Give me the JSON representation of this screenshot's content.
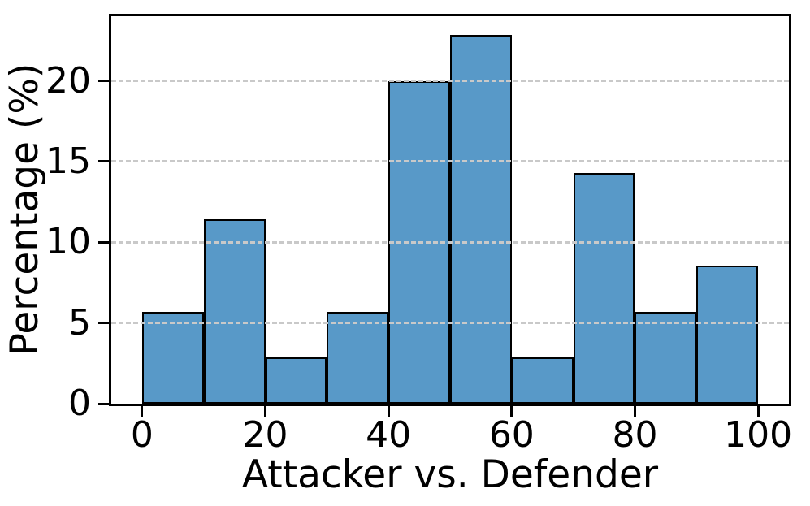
{
  "chart_data": {
    "type": "bar",
    "subtype": "histogram",
    "title": "",
    "xlabel": "Attacker vs. Defender",
    "ylabel": "Percentage (%)",
    "bin_edges": [
      0,
      10,
      20,
      30,
      40,
      50,
      60,
      70,
      80,
      90,
      100
    ],
    "values": [
      5.71,
      11.43,
      2.86,
      5.71,
      20.0,
      22.86,
      2.86,
      14.29,
      5.71,
      8.57
    ],
    "x_tick_values": [
      0,
      20,
      40,
      60,
      80,
      100
    ],
    "x_tick_labels": [
      "0",
      "20",
      "40",
      "60",
      "80",
      "100"
    ],
    "y_tick_values": [
      0,
      5,
      10,
      15,
      20
    ],
    "y_tick_labels": [
      "0",
      "5",
      "10",
      "15",
      "20"
    ],
    "xlim": [
      -5,
      105
    ],
    "ylim": [
      0,
      24
    ],
    "grid": {
      "axis": "y",
      "style": "dashed",
      "on_top": true
    },
    "legend_position": "none",
    "colors": {
      "bar_fill": "#5899C8",
      "bar_edge": "#000000",
      "grid_color": "#c9c9c9",
      "spine": "#000000",
      "background": "#ffffff",
      "text": "#000000"
    }
  }
}
